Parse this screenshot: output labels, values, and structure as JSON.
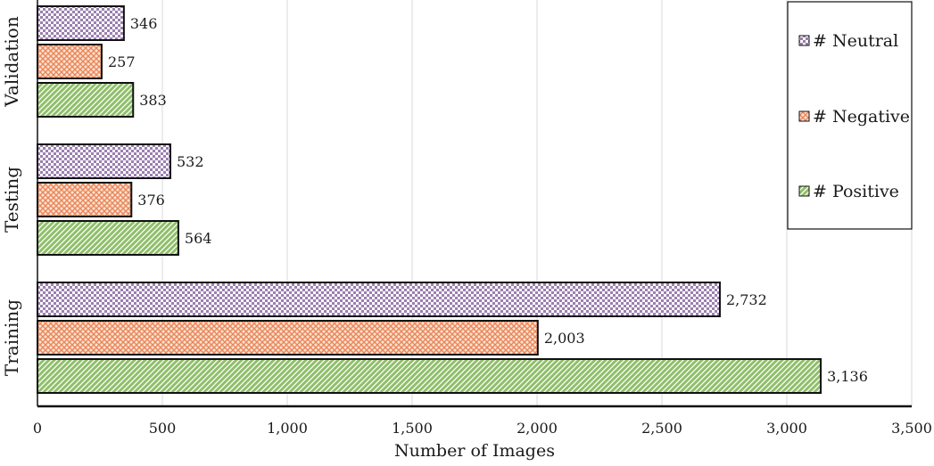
{
  "chart_data": {
    "type": "bar",
    "orientation": "horizontal",
    "categories": [
      "Validation",
      "Testing",
      "Training"
    ],
    "series": [
      {
        "name": "# Neutral",
        "values": [
          346,
          532,
          2732
        ],
        "data_labels": [
          "346",
          "532",
          "2,732"
        ],
        "color": "#9b7fb0",
        "pattern": "checker"
      },
      {
        "name": "# Negative",
        "values": [
          257,
          376,
          2003
        ],
        "data_labels": [
          "257",
          "376",
          "2,003"
        ],
        "color": "#f2a27e",
        "pattern": "crosshatch"
      },
      {
        "name": "# Positive",
        "values": [
          383,
          564,
          3136
        ],
        "data_labels": [
          "383",
          "564",
          "3,136"
        ],
        "color": "#8fbf6a",
        "pattern": "diagonal"
      }
    ],
    "xlabel": "Number of Images",
    "ylabel": "",
    "xlim": [
      0,
      3500
    ],
    "x_ticks": [
      0,
      500,
      1000,
      1500,
      2000,
      2500,
      3000,
      3500
    ],
    "x_tick_labels": [
      "0",
      "500",
      "1,000",
      "1,500",
      "2,000",
      "2,500",
      "3,000",
      "3,500"
    ],
    "grid": "vertical",
    "legend_position": "top-right"
  }
}
